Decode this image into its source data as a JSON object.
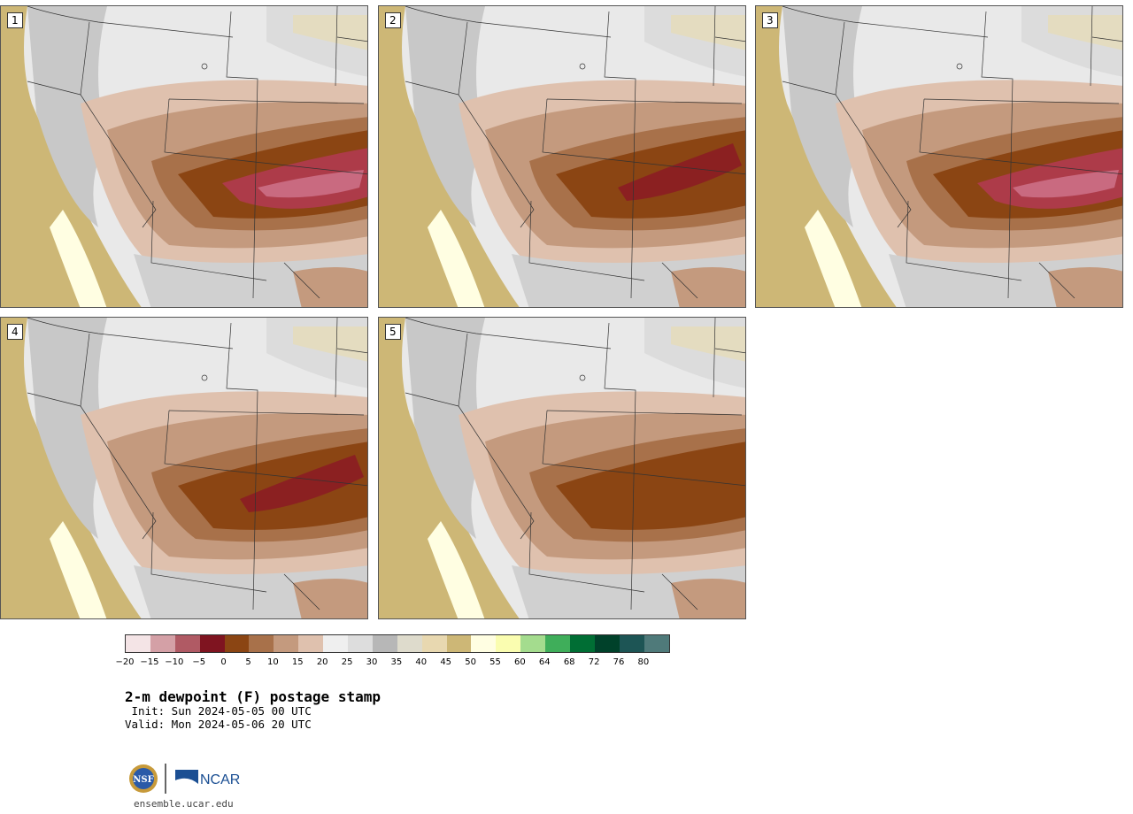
{
  "stamps": [
    {
      "label": "1",
      "intensity": "high"
    },
    {
      "label": "2",
      "intensity": "medium"
    },
    {
      "label": "3",
      "intensity": "high"
    },
    {
      "label": "4",
      "intensity": "medium"
    },
    {
      "label": "5",
      "intensity": "low"
    }
  ],
  "colorbar": {
    "colors": [
      "#f4e4e6",
      "#d4a0a6",
      "#b05a64",
      "#7f1420",
      "#8b4513",
      "#a8714a",
      "#c49a7e",
      "#dfc1ae",
      "#efefef",
      "#dddddd",
      "#b7b7b7",
      "#dedbcc",
      "#e8d8b0",
      "#cdb776",
      "#fffee2",
      "#fafdb0",
      "#a4dc8e",
      "#3fae5a",
      "#006e34",
      "#00412a",
      "#1d5555",
      "#4f7a7a"
    ],
    "tick_labels": [
      "−20",
      "−15",
      "−10",
      "−5",
      "0",
      "5",
      "10",
      "15",
      "20",
      "25",
      "30",
      "35",
      "40",
      "45",
      "50",
      "55",
      "60",
      "64",
      "68",
      "72",
      "76",
      "80"
    ]
  },
  "title": "2-m dewpoint (F) postage stamp",
  "init_line": " Init: Sun 2024-05-05 00 UTC",
  "valid_line": "Valid: Mon 2024-05-06 20 UTC",
  "logos": {
    "left": "NSF",
    "right": "NCAR"
  },
  "footer_url": "ensemble.ucar.edu"
}
